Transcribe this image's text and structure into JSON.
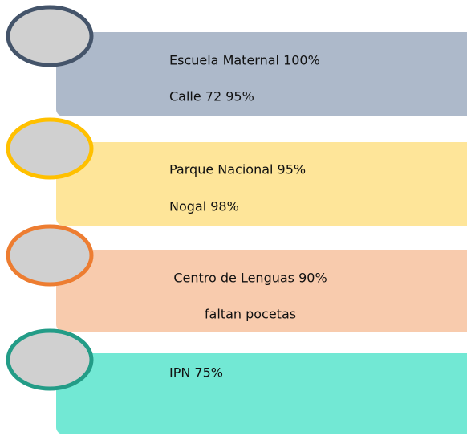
{
  "items": [
    {
      "lines": [
        "Escuela Maternal 100%",
        "Calle 72 95%"
      ]
    },
    {
      "lines": [
        "Parque Nacional 95%",
        "Nogal 98%"
      ]
    },
    {
      "lines": [
        "Centro de Lenguas 90%",
        "faltan pocetas"
      ]
    },
    {
      "lines": [
        "IPN 75%"
      ]
    }
  ]
}
